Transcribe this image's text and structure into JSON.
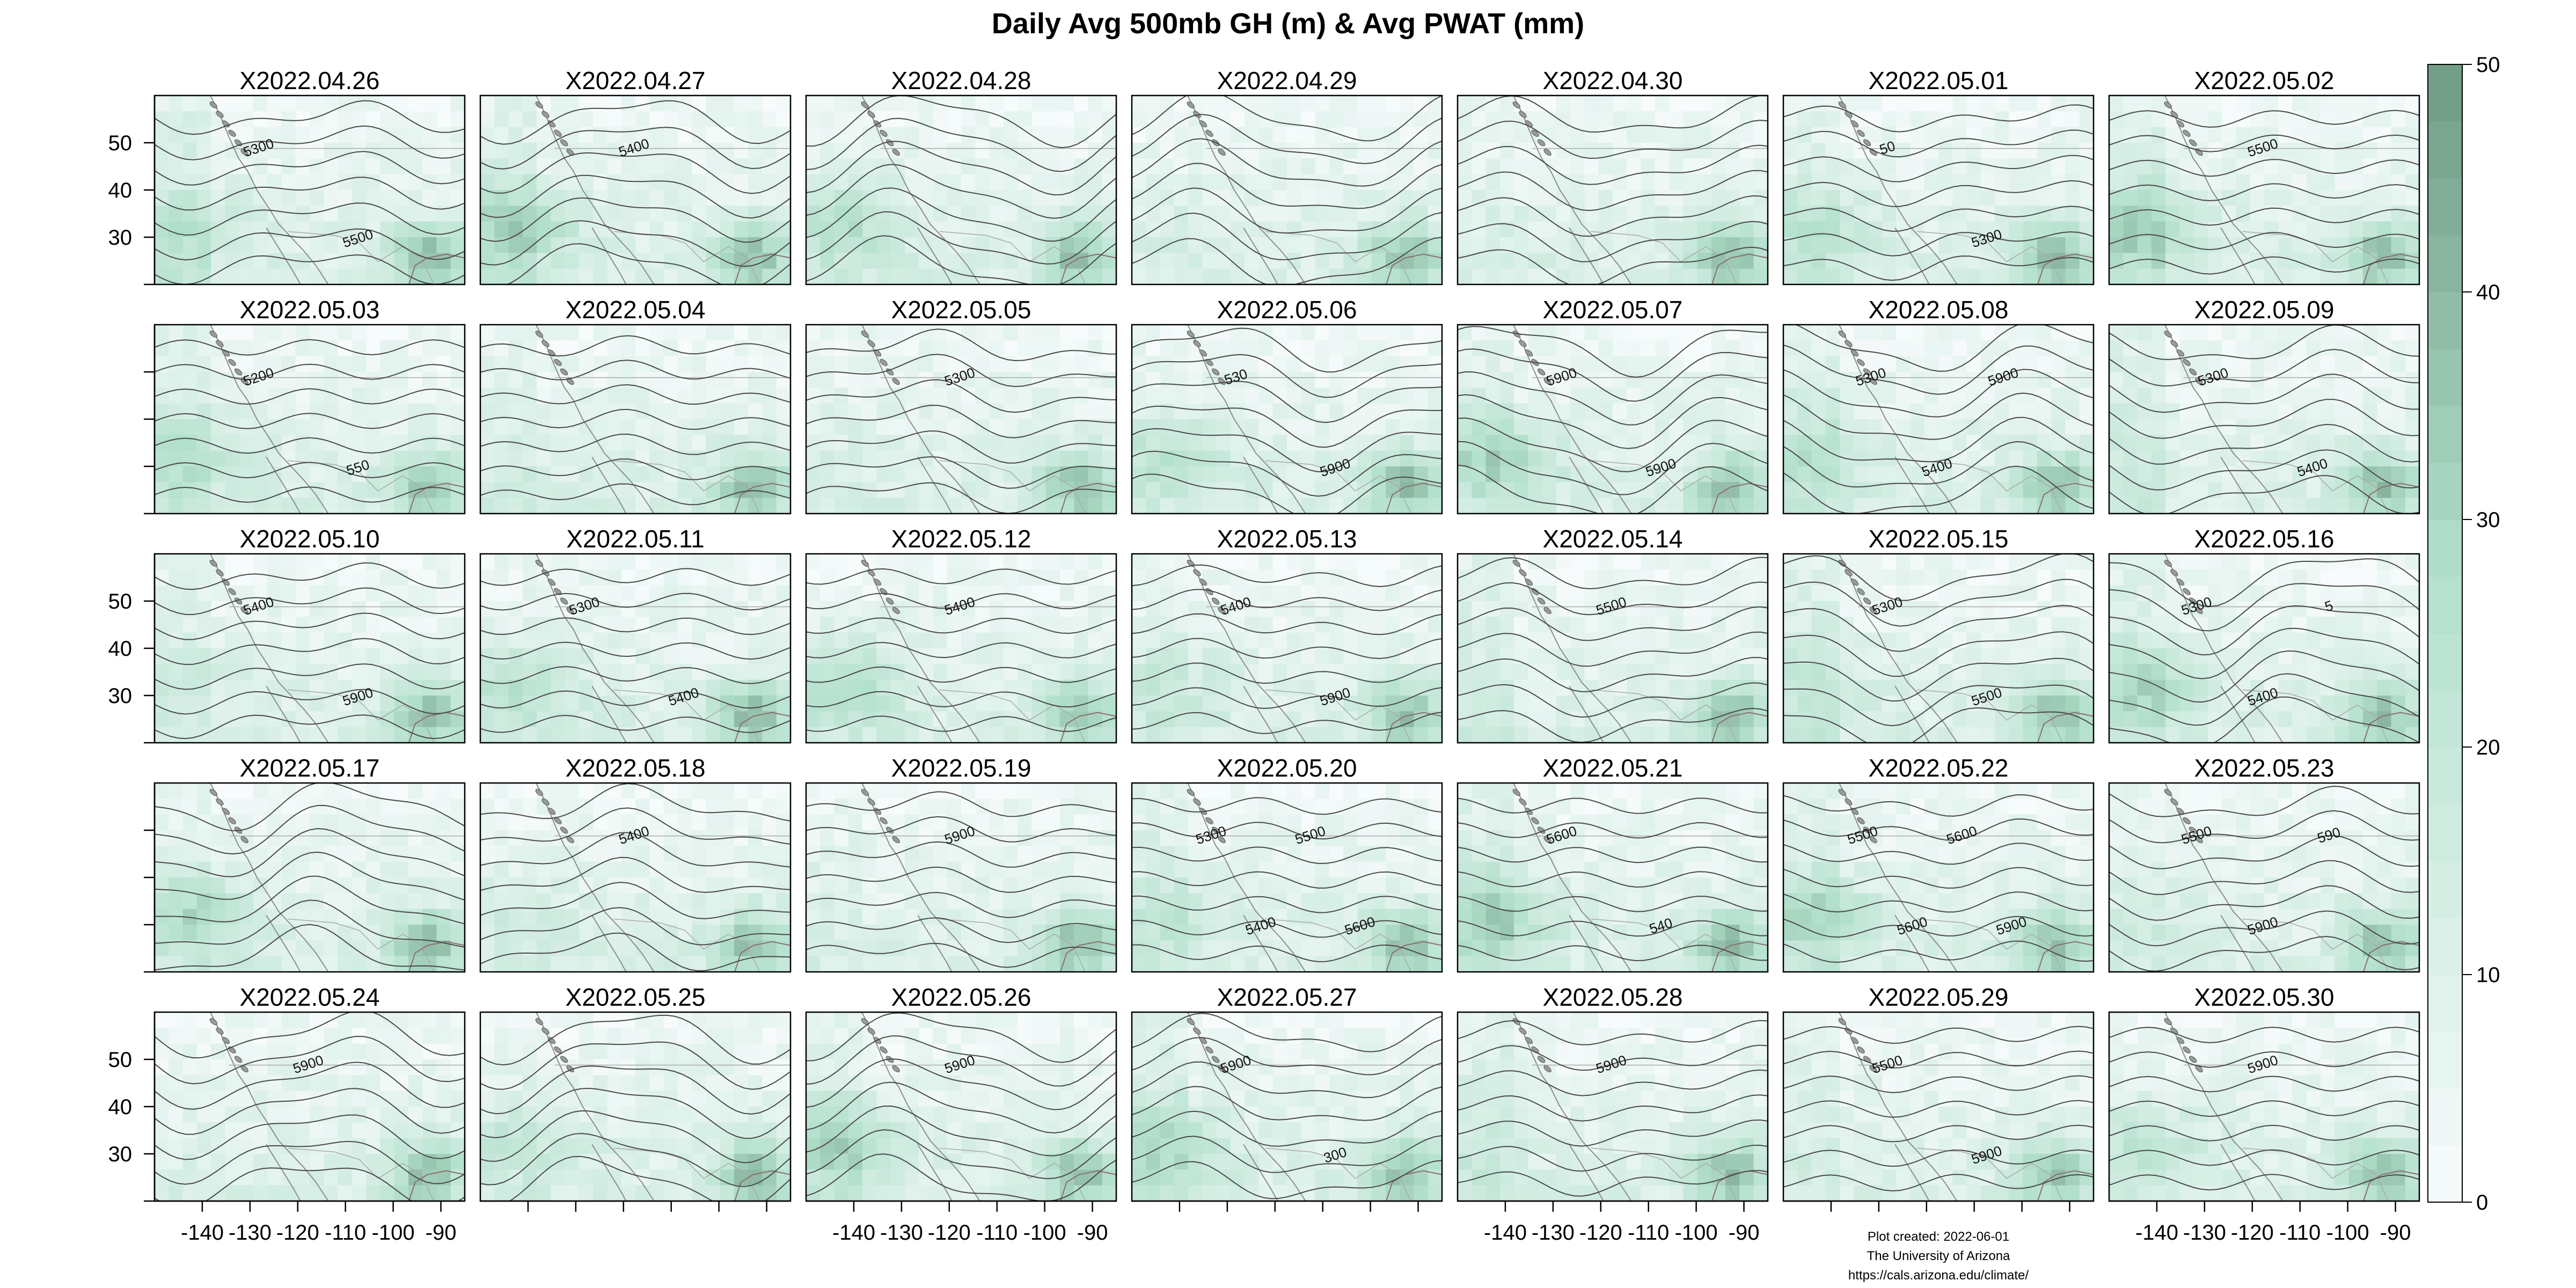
{
  "title": "Daily Avg 500mb GH (m) & Avg PWAT (mm)",
  "panels": [
    {
      "date": "X2022.04.26",
      "labels": [
        "5300",
        "5500"
      ]
    },
    {
      "date": "X2022.04.27",
      "labels": [
        "5400"
      ]
    },
    {
      "date": "X2022.04.28",
      "labels": []
    },
    {
      "date": "X2022.04.29",
      "labels": []
    },
    {
      "date": "X2022.04.30",
      "labels": []
    },
    {
      "date": "X2022.05.01",
      "labels": [
        "50",
        "5300"
      ]
    },
    {
      "date": "X2022.05.02",
      "labels": [
        "5500"
      ]
    },
    {
      "date": "X2022.05.03",
      "labels": [
        "5200",
        "550"
      ]
    },
    {
      "date": "X2022.05.04",
      "labels": []
    },
    {
      "date": "X2022.05.05",
      "labels": [
        "5300"
      ]
    },
    {
      "date": "X2022.05.06",
      "labels": [
        "530",
        "5900"
      ]
    },
    {
      "date": "X2022.05.07",
      "labels": [
        "5900",
        "5900"
      ]
    },
    {
      "date": "X2022.05.08",
      "labels": [
        "5300",
        "5400",
        "5900"
      ]
    },
    {
      "date": "X2022.05.09",
      "labels": [
        "5300",
        "5400"
      ]
    },
    {
      "date": "X2022.05.10",
      "labels": [
        "5400",
        "5900"
      ]
    },
    {
      "date": "X2022.05.11",
      "labels": [
        "5300",
        "5400"
      ]
    },
    {
      "date": "X2022.05.12",
      "labels": [
        "5400"
      ]
    },
    {
      "date": "X2022.05.13",
      "labels": [
        "5400",
        "5900"
      ]
    },
    {
      "date": "X2022.05.14",
      "labels": [
        "5500"
      ]
    },
    {
      "date": "X2022.05.15",
      "labels": [
        "5300",
        "5500"
      ]
    },
    {
      "date": "X2022.05.16",
      "labels": [
        "5300",
        "5400",
        "5"
      ]
    },
    {
      "date": "X2022.05.17",
      "labels": []
    },
    {
      "date": "X2022.05.18",
      "labels": [
        "5400"
      ]
    },
    {
      "date": "X2022.05.19",
      "labels": [
        "5900"
      ]
    },
    {
      "date": "X2022.05.20",
      "labels": [
        "5300",
        "5400",
        "5500",
        "5600"
      ]
    },
    {
      "date": "X2022.05.21",
      "labels": [
        "5600",
        "540"
      ]
    },
    {
      "date": "X2022.05.22",
      "labels": [
        "5500",
        "5600",
        "5600",
        "5900"
      ]
    },
    {
      "date": "X2022.05.23",
      "labels": [
        "5500",
        "5900",
        "590"
      ]
    },
    {
      "date": "X2022.05.24",
      "labels": [
        "5900"
      ]
    },
    {
      "date": "X2022.05.25",
      "labels": []
    },
    {
      "date": "X2022.05.26",
      "labels": [
        "5900"
      ]
    },
    {
      "date": "X2022.05.27",
      "labels": [
        "5900",
        "300"
      ]
    },
    {
      "date": "X2022.05.28",
      "labels": [
        "5900"
      ]
    },
    {
      "date": "X2022.05.29",
      "labels": [
        "5500",
        "5900"
      ]
    },
    {
      "date": "X2022.05.30",
      "labels": [
        "5900"
      ]
    }
  ],
  "y_ticks": [
    "30",
    "40",
    "50"
  ],
  "x_ticks": [
    "-140",
    "-130",
    "-120",
    "-110",
    "-100",
    "-90"
  ],
  "colorbar": {
    "ticks": [
      "0",
      "10",
      "20",
      "30",
      "40",
      "50"
    ],
    "range": [
      0,
      50
    ],
    "low_color": "#f7fbfc",
    "high_color": "#6f9a84"
  },
  "credit": [
    "Plot created: 2022-06-01",
    "The University of Arizona",
    "https://cals.arizona.edu/climate/"
  ]
}
